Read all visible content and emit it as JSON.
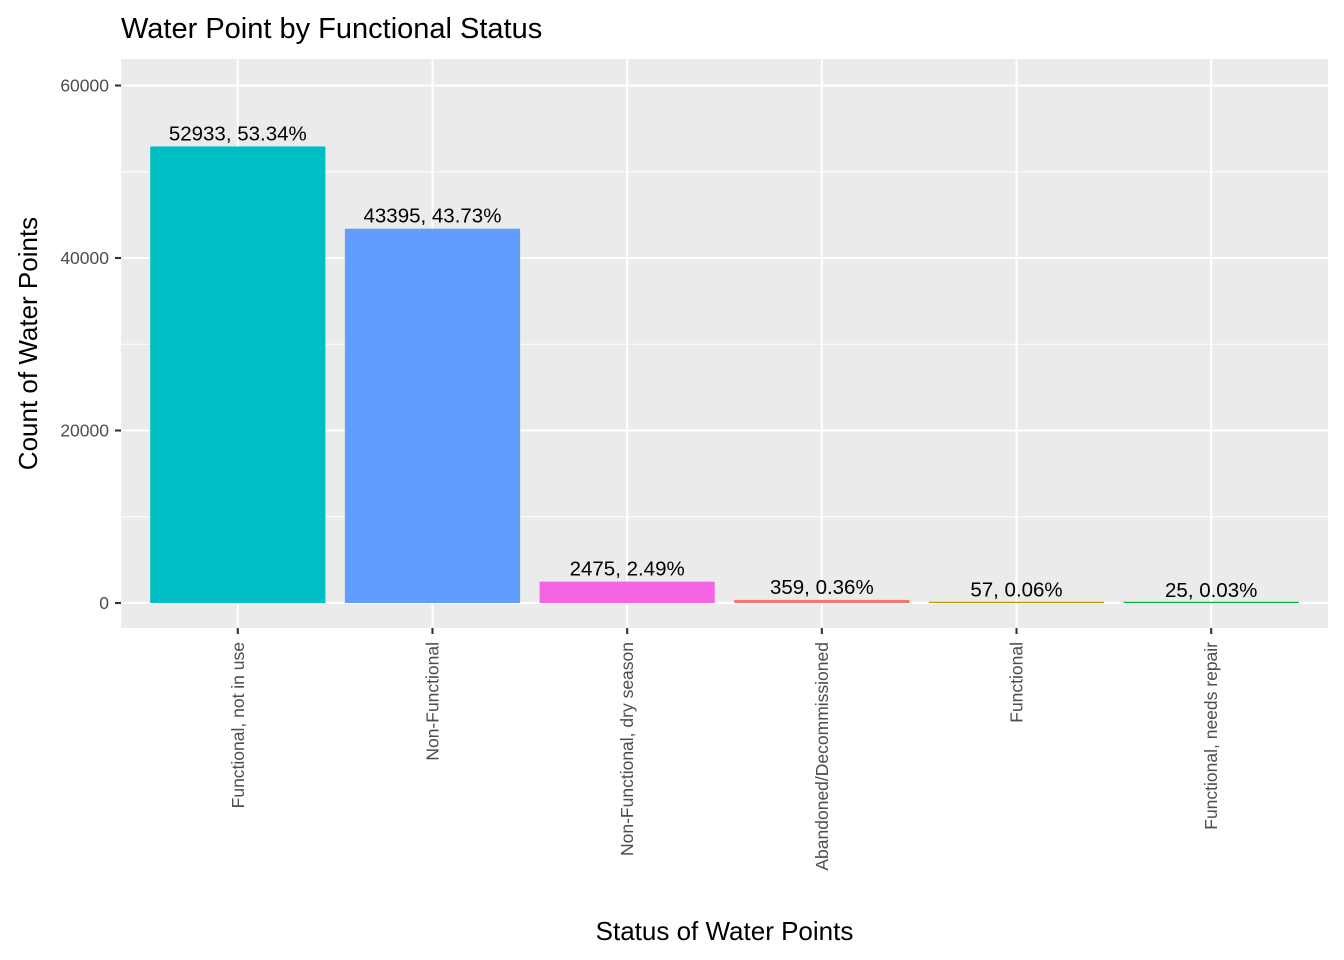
{
  "chart_data": {
    "type": "bar",
    "title": "Water Point by Functional Status",
    "xlabel": "Status of Water Points",
    "ylabel": "Count of Water Points",
    "categories": [
      "Functional, not in use",
      "Non-Functional",
      "Non-Functional, dry season",
      "Abandoned/Decommissioned",
      "Functional",
      "Functional, needs repair"
    ],
    "values": [
      52933,
      43395,
      2475,
      359,
      57,
      25
    ],
    "data_labels": [
      "52933, 53.34%",
      "43395, 43.73%",
      "2475, 2.49%",
      "359, 0.36%",
      "57, 0.06%",
      "25, 0.03%"
    ],
    "colors": [
      "#00BFC4",
      "#619CFF",
      "#F564E3",
      "#F8766D",
      "#B79F00",
      "#00BA38"
    ],
    "ylim": [
      0,
      60000
    ],
    "yticks": [
      0,
      20000,
      40000,
      60000
    ],
    "ytick_labels": [
      "0",
      "20000",
      "40000",
      "60000"
    ],
    "grid": true,
    "legend": "none"
  }
}
